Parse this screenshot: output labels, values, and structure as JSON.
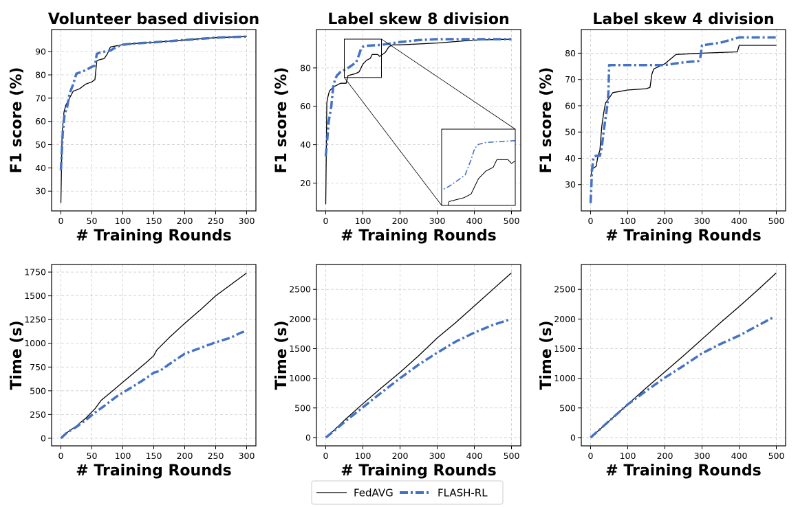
{
  "legend": {
    "items": [
      {
        "label": "FedAVG",
        "color": "#000000",
        "style": "solid"
      },
      {
        "label": "FLASH-RL",
        "color": "#4472c4",
        "style": "dashdot"
      }
    ],
    "placement": "bottom-center"
  },
  "chart_data": [
    {
      "type": "line",
      "row": 0,
      "col": 0,
      "title": "Volunteer based division",
      "xlabel": "# Training Rounds",
      "ylabel": "F1 score (%)",
      "xlim": [
        -15,
        315
      ],
      "ylim": [
        21.5,
        99.5
      ],
      "xticks": [
        0,
        50,
        100,
        150,
        200,
        250,
        300
      ],
      "yticks": [
        30,
        40,
        50,
        60,
        70,
        80,
        90
      ],
      "grid": true,
      "series": [
        {
          "name": "FedAVG",
          "x": [
            0,
            2,
            5,
            8,
            12,
            16,
            20,
            30,
            40,
            50,
            55,
            58,
            62,
            70,
            75,
            80,
            90,
            100,
            120,
            150,
            200,
            250,
            300
          ],
          "y": [
            25,
            55,
            64,
            67,
            69,
            71,
            73,
            74,
            76,
            77,
            78,
            86,
            86.5,
            87,
            89,
            92,
            92.5,
            93,
            93.5,
            94,
            95,
            96,
            96.5
          ]
        },
        {
          "name": "FLASH-RL",
          "x": [
            0,
            3,
            6,
            10,
            14,
            20,
            25,
            30,
            40,
            50,
            55,
            58,
            62,
            70,
            80,
            90,
            100,
            120,
            150,
            200,
            250,
            300
          ],
          "y": [
            39,
            55,
            63,
            66,
            72,
            76,
            80.5,
            81,
            82,
            83.5,
            84,
            89,
            89.5,
            90,
            90.5,
            92,
            93,
            93.5,
            94,
            95,
            96,
            96.5
          ]
        }
      ]
    },
    {
      "type": "line",
      "row": 0,
      "col": 1,
      "title": "Label skew 8 division",
      "xlabel": "# Training Rounds",
      "ylabel": "F1 score (%)",
      "xlim": [
        -25,
        525
      ],
      "ylim": [
        5.5,
        100
      ],
      "xticks": [
        0,
        100,
        200,
        300,
        400,
        500
      ],
      "yticks": [
        20,
        40,
        60,
        80
      ],
      "grid": true,
      "inset_zoom": {
        "xrange": [
          50,
          150
        ],
        "yrange": [
          75,
          95
        ]
      },
      "series": [
        {
          "name": "FedAVG",
          "x": [
            0,
            3,
            6,
            10,
            15,
            20,
            40,
            55,
            60,
            80,
            90,
            100,
            110,
            120,
            125,
            140,
            145,
            160,
            170,
            180,
            200,
            300,
            400,
            500
          ],
          "y": [
            9,
            62,
            65,
            68,
            69,
            70,
            72,
            72,
            76,
            77,
            78,
            82,
            84,
            85,
            87,
            87,
            86,
            88,
            91,
            92,
            92,
            93,
            94.5,
            95
          ]
        },
        {
          "name": "FLASH-RL",
          "x": [
            0,
            3,
            8,
            15,
            20,
            25,
            30,
            40,
            60,
            75,
            82,
            90,
            95,
            100,
            110,
            150,
            200,
            250,
            300,
            400,
            500
          ],
          "y": [
            34,
            40,
            52,
            60,
            70,
            74,
            76,
            78,
            80,
            82,
            83,
            87,
            90,
            91,
            91.5,
            92,
            93.5,
            94.5,
            95,
            95,
            95
          ]
        }
      ]
    },
    {
      "type": "line",
      "row": 0,
      "col": 2,
      "title": "Label skew 4 division",
      "xlabel": "# Training Rounds",
      "ylabel": "F1 score (%)",
      "xlim": [
        -25,
        525
      ],
      "ylim": [
        20,
        89
      ],
      "xticks": [
        0,
        100,
        200,
        300,
        400,
        500
      ],
      "yticks": [
        30,
        40,
        50,
        60,
        70,
        80
      ],
      "grid": true,
      "series": [
        {
          "name": "FedAVG",
          "x": [
            0,
            5,
            15,
            20,
            25,
            30,
            35,
            40,
            45,
            50,
            60,
            100,
            150,
            160,
            165,
            170,
            200,
            230,
            300,
            395,
            400,
            500
          ],
          "y": [
            33,
            36,
            37,
            41,
            43,
            52,
            57,
            61,
            62,
            63,
            65,
            66,
            66.5,
            67,
            72,
            74,
            76,
            79.5,
            80,
            80.5,
            83,
            83
          ]
        },
        {
          "name": "FLASH-RL",
          "x": [
            0,
            4,
            8,
            15,
            25,
            30,
            35,
            40,
            45,
            48,
            50,
            60,
            100,
            150,
            200,
            250,
            290,
            295,
            300,
            350,
            400,
            450,
            500
          ],
          "y": [
            23,
            36,
            40.5,
            41,
            41,
            44,
            50,
            55,
            60,
            65,
            75.5,
            75.5,
            75.5,
            75.5,
            75.5,
            76.5,
            77,
            78,
            83,
            84,
            86,
            86,
            86
          ]
        }
      ]
    },
    {
      "type": "line",
      "row": 1,
      "col": 0,
      "title": "",
      "xlabel": "# Training Rounds",
      "ylabel": "Time (s)",
      "xlim": [
        -15,
        315
      ],
      "ylim": [
        -80,
        1830
      ],
      "xticks": [
        0,
        50,
        100,
        150,
        200,
        250,
        300
      ],
      "yticks": [
        0,
        250,
        500,
        750,
        1000,
        1250,
        1500,
        1750
      ],
      "grid": true,
      "series": [
        {
          "name": "FedAVG",
          "x": [
            0,
            10,
            25,
            40,
            55,
            65,
            80,
            100,
            120,
            140,
            150,
            155,
            175,
            200,
            225,
            250,
            275,
            300
          ],
          "y": [
            0,
            60,
            130,
            210,
            310,
            400,
            480,
            590,
            700,
            810,
            870,
            930,
            1060,
            1210,
            1350,
            1500,
            1620,
            1740
          ]
        },
        {
          "name": "FLASH-RL",
          "x": [
            0,
            10,
            25,
            40,
            55,
            70,
            90,
            110,
            130,
            150,
            160,
            175,
            200,
            225,
            250,
            275,
            290,
            300
          ],
          "y": [
            0,
            60,
            120,
            190,
            270,
            340,
            440,
            520,
            600,
            690,
            710,
            780,
            890,
            950,
            1010,
            1060,
            1110,
            1130
          ]
        }
      ]
    },
    {
      "type": "line",
      "row": 1,
      "col": 1,
      "title": "",
      "xlabel": "# Training Rounds",
      "ylabel": "Time (s)",
      "xlim": [
        -25,
        525
      ],
      "ylim": [
        -140,
        2920
      ],
      "xticks": [
        0,
        100,
        200,
        300,
        400,
        500
      ],
      "yticks": [
        0,
        500,
        1000,
        1500,
        2000,
        2500
      ],
      "grid": true,
      "series": [
        {
          "name": "FedAVG",
          "x": [
            0,
            20,
            50,
            100,
            150,
            200,
            250,
            300,
            350,
            400,
            450,
            500
          ],
          "y": [
            0,
            110,
            290,
            570,
            840,
            1100,
            1380,
            1680,
            1940,
            2220,
            2500,
            2780
          ]
        },
        {
          "name": "FLASH-RL",
          "x": [
            0,
            20,
            50,
            100,
            150,
            200,
            250,
            300,
            350,
            400,
            450,
            495
          ],
          "y": [
            0,
            100,
            260,
            510,
            760,
            1000,
            1230,
            1430,
            1620,
            1770,
            1900,
            1990
          ]
        }
      ]
    },
    {
      "type": "line",
      "row": 1,
      "col": 2,
      "title": "",
      "xlabel": "# Training Rounds",
      "ylabel": "Time (s)",
      "xlim": [
        -25,
        525
      ],
      "ylim": [
        -140,
        2920
      ],
      "xticks": [
        0,
        100,
        200,
        300,
        400,
        500
      ],
      "yticks": [
        0,
        500,
        1000,
        1500,
        2000,
        2500
      ],
      "grid": true,
      "series": [
        {
          "name": "FedAVG",
          "x": [
            0,
            20,
            50,
            100,
            150,
            200,
            250,
            300,
            350,
            400,
            450,
            500
          ],
          "y": [
            0,
            110,
            280,
            560,
            840,
            1110,
            1380,
            1660,
            1940,
            2210,
            2490,
            2780
          ]
        },
        {
          "name": "FLASH-RL",
          "x": [
            0,
            20,
            50,
            100,
            150,
            200,
            250,
            300,
            350,
            400,
            450,
            490
          ],
          "y": [
            0,
            110,
            280,
            560,
            790,
            1010,
            1210,
            1420,
            1580,
            1720,
            1890,
            2020
          ]
        }
      ]
    }
  ]
}
